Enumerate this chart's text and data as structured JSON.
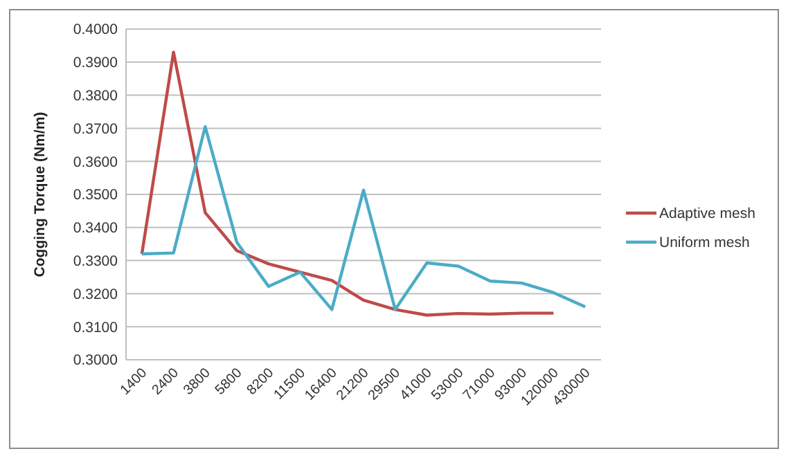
{
  "chart_data": {
    "type": "line",
    "ylabel": "Cogging Torque (Nm/m)",
    "categories": [
      "1400",
      "2400",
      "3800",
      "5800",
      "8200",
      "11500",
      "16400",
      "21200",
      "29500",
      "41000",
      "53000",
      "71000",
      "93000",
      "120000",
      "430000"
    ],
    "series": [
      {
        "name": "Adaptive mesh",
        "color": "#be4b48",
        "values": [
          0.332,
          0.393,
          0.3445,
          0.333,
          0.329,
          0.3265,
          0.324,
          0.318,
          0.3152,
          0.3135,
          0.314,
          0.3138,
          0.3141,
          0.3141,
          null
        ]
      },
      {
        "name": "Uniform mesh",
        "color": "#4bacc6",
        "values": [
          0.332,
          0.3323,
          0.3705,
          0.3355,
          0.3222,
          0.3265,
          0.3152,
          0.3513,
          0.3152,
          0.3293,
          0.3283,
          0.3238,
          0.3232,
          0.3203,
          0.316
        ]
      }
    ],
    "ylim": [
      0.3,
      0.4
    ],
    "yticks": [
      {
        "value": 0.3,
        "label": "0.3000"
      },
      {
        "value": 0.31,
        "label": "0.3100"
      },
      {
        "value": 0.32,
        "label": "0.3200"
      },
      {
        "value": 0.33,
        "label": "0.3300"
      },
      {
        "value": 0.34,
        "label": "0.3400"
      },
      {
        "value": 0.35,
        "label": "0.3500"
      },
      {
        "value": 0.36,
        "label": "0.3600"
      },
      {
        "value": 0.37,
        "label": "0.3700"
      },
      {
        "value": 0.38,
        "label": "0.3800"
      },
      {
        "value": 0.39,
        "label": "0.3900"
      },
      {
        "value": 0.4,
        "label": "0.4000"
      }
    ],
    "grid": "y",
    "legend": "right",
    "marker": "none",
    "line_style": "solid"
  }
}
